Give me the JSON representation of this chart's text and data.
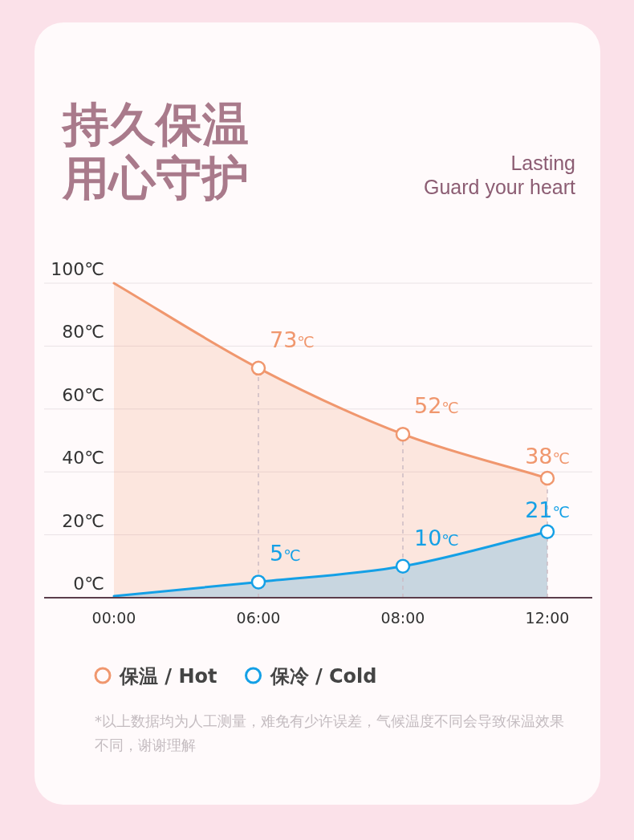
{
  "chart_data": {
    "type": "area",
    "title": "持久保温用心守护",
    "subtitle": "Lasting\nGuard your heart",
    "categories": [
      "00:00",
      "06:00",
      "08:00",
      "12:00"
    ],
    "ylim": [
      0,
      100
    ],
    "yticks": [
      {
        "value": 0,
        "label": "0℃"
      },
      {
        "value": 20,
        "label": "20℃"
      },
      {
        "value": 40,
        "label": "40℃"
      },
      {
        "value": 60,
        "label": "60℃"
      },
      {
        "value": 80,
        "label": "80℃"
      },
      {
        "value": 100,
        "label": "100℃"
      }
    ],
    "series": [
      {
        "name": "保温 / Hot",
        "color": "#f0976e",
        "values": [
          100,
          73,
          52,
          38
        ],
        "value_labels": [
          null,
          "73℃",
          "52℃",
          "38℃"
        ]
      },
      {
        "name": "保冷 / Cold",
        "color": "#14a0e6",
        "values": [
          0.5,
          5,
          10,
          21
        ],
        "value_labels": [
          null,
          "5℃",
          "10℃",
          "21℃"
        ]
      }
    ],
    "marker": "circle",
    "grid": "y",
    "legend": "bottom",
    "ref_lines": [
      {
        "axis": "x",
        "value": "06:00",
        "line_style": "dashed",
        "color": "#cbbcc3"
      },
      {
        "axis": "x",
        "value": "08:00",
        "line_style": "dashed",
        "color": "#cbbcc3"
      },
      {
        "axis": "x",
        "value": "12:00",
        "line_style": "dashed",
        "color": "#cbbcc3"
      }
    ],
    "annotations": [
      "*以上数据均为人工测量，难免有少许误差，气候温度不同会导致保温效果不同，谢谢理解"
    ]
  }
}
